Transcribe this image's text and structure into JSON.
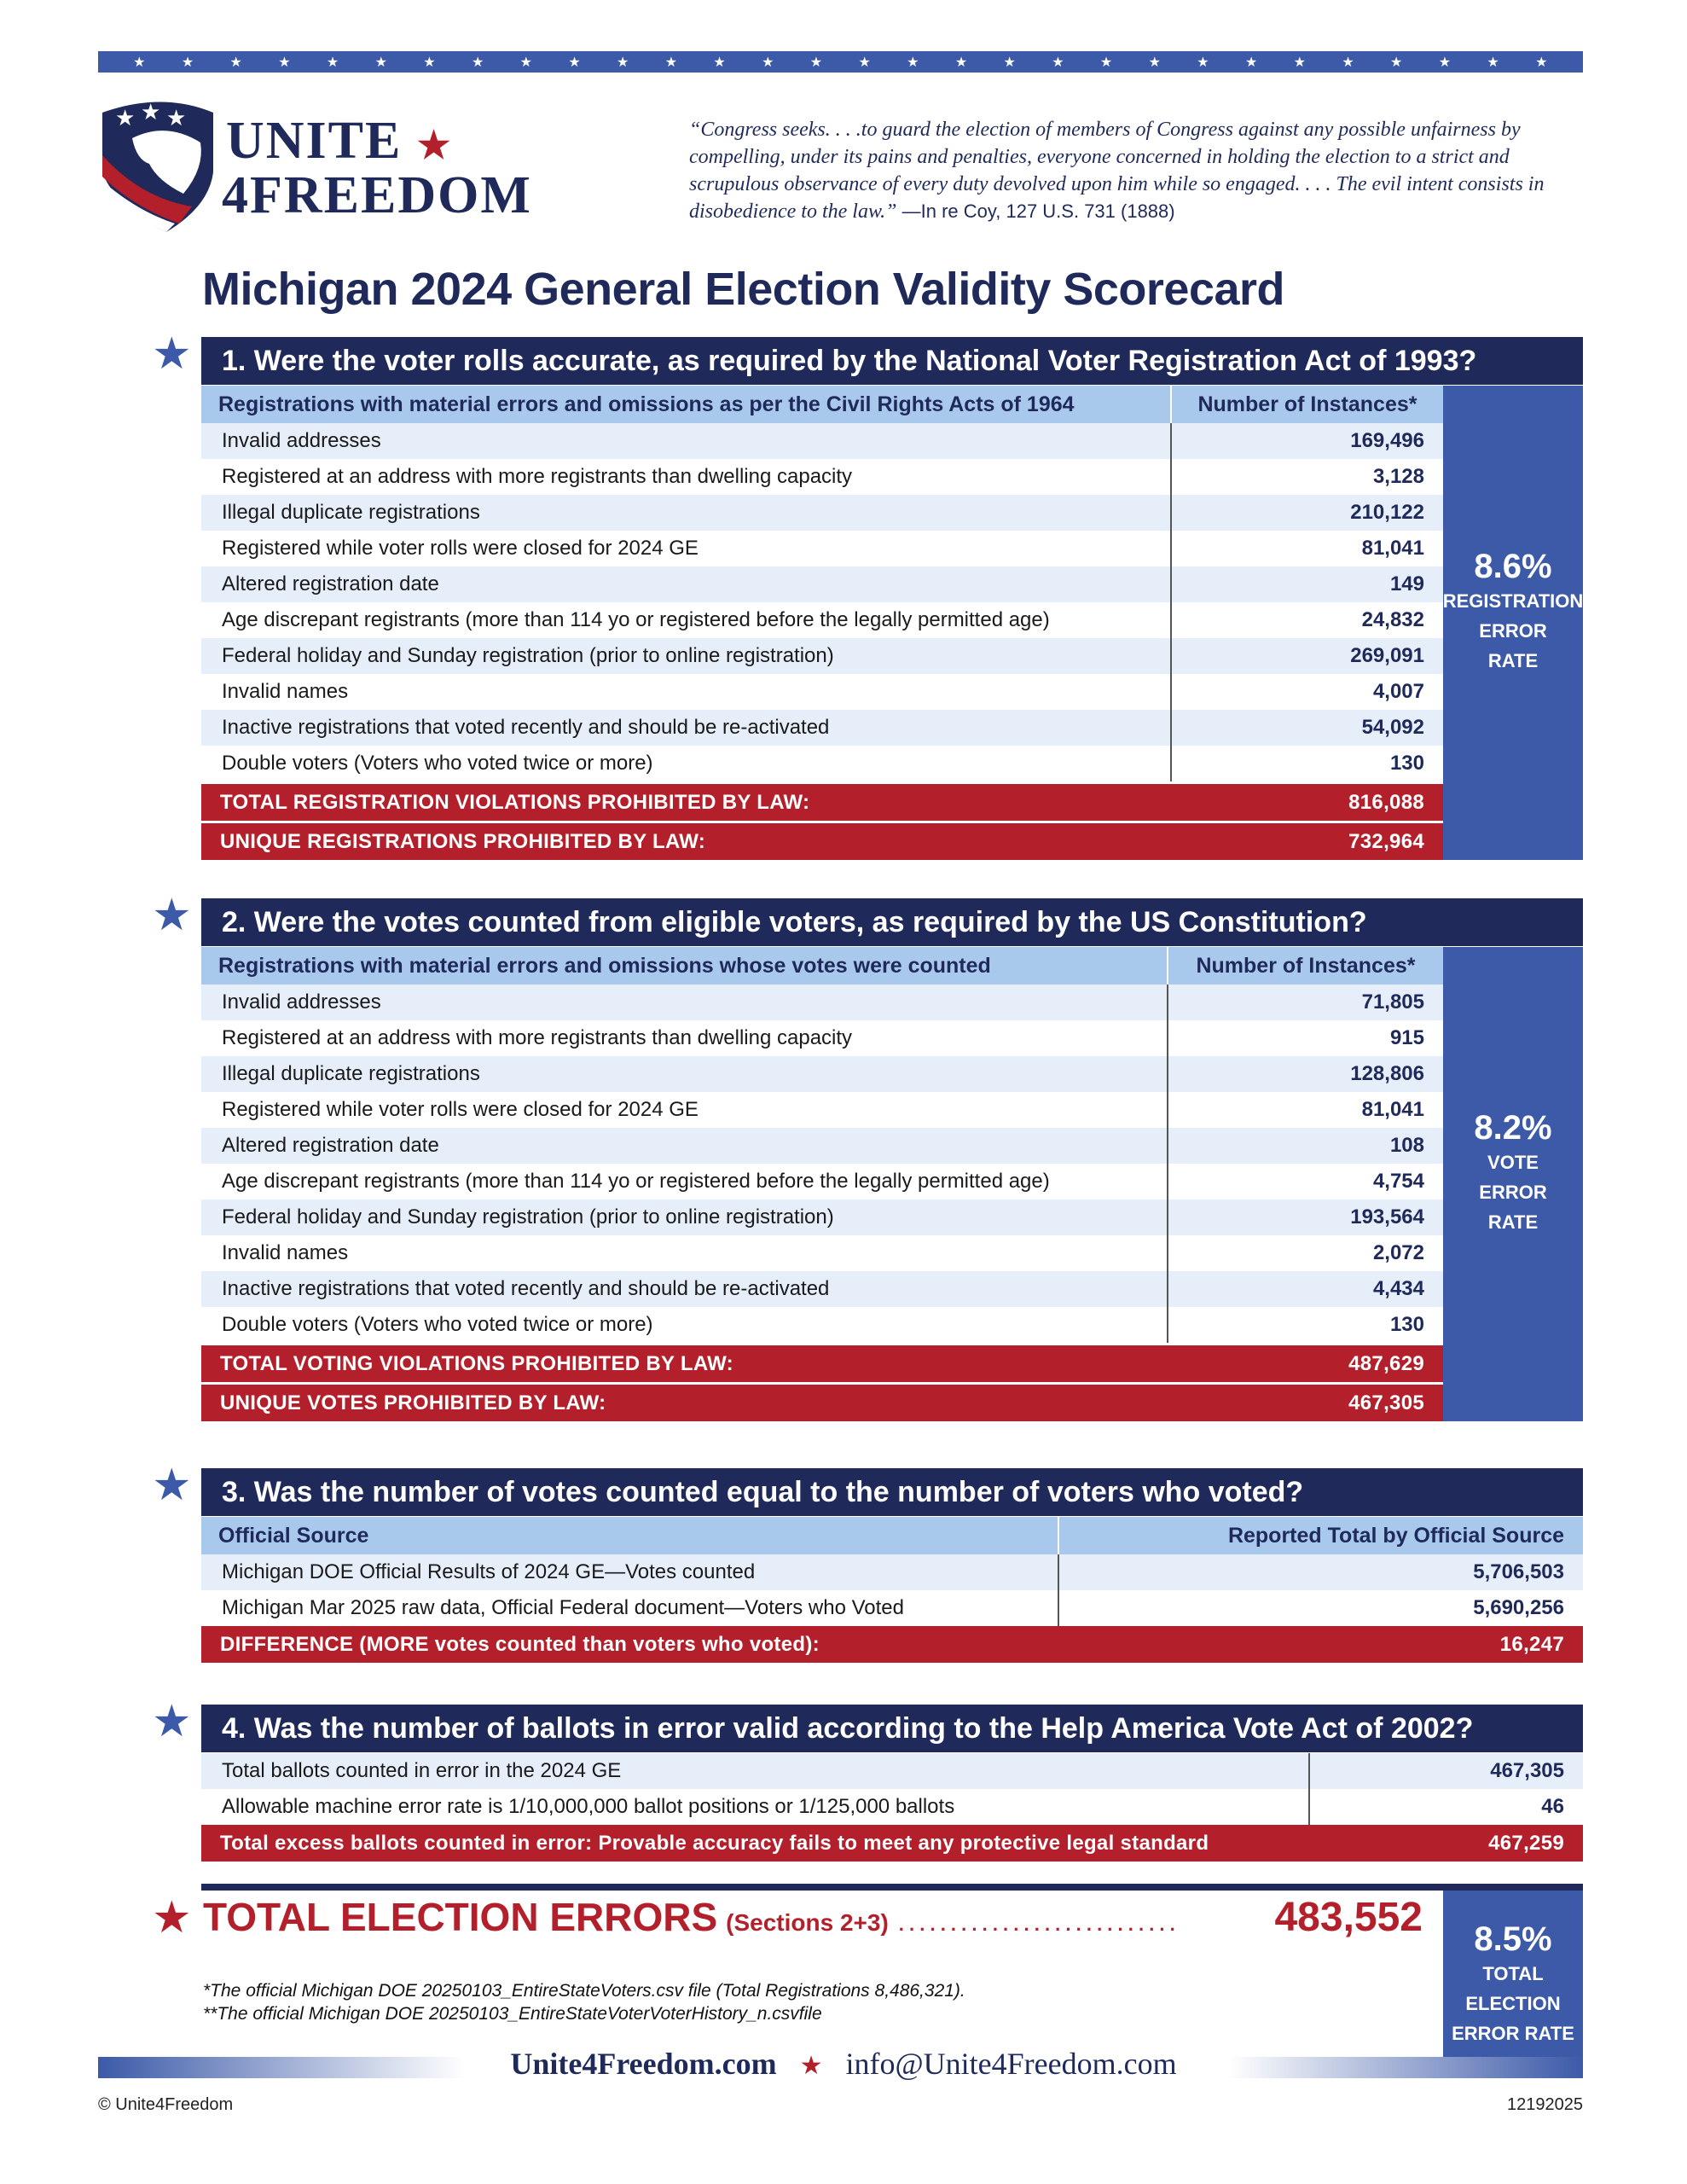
{
  "brand": {
    "line1": "UNITE",
    "line2": "4FREEDOM",
    "star_color": "#b31f2a"
  },
  "quote": {
    "text": "“Congress seeks. . . .to guard the election of members of Congress against any possible unfairness by compelling, under its pains and penalties, everyone concerned in holding the election to a strict and scrupulous observance of every duty devolved upon him while so engaged. . . . The evil intent consists in disobedience to the law.”",
    "cite": " —In re Coy, 127 U.S. 731 (1888)"
  },
  "title": "Michigan 2024 General Election Validity Scorecard",
  "colors": {
    "navy": "#1f2a5a",
    "blue": "#3c5aa8",
    "red": "#b31f2a",
    "lightblue": "#a9c9ec"
  },
  "sections": [
    {
      "heading": "1. Were the voter rolls accurate, as required by the National Voter Registration Act of 1993?",
      "col_label": "Registrations with material errors and omissions as per the Civil Rights Acts of 1964",
      "col_value": "Number of Instances*",
      "rows": [
        [
          "Invalid addresses",
          "169,496"
        ],
        [
          "Registered at an address with more registrants than dwelling capacity",
          "3,128"
        ],
        [
          "Illegal duplicate registrations",
          "210,122"
        ],
        [
          "Registered while voter rolls were closed for 2024 GE",
          "81,041"
        ],
        [
          "Altered registration date",
          "149"
        ],
        [
          "Age discrepant registrants (more than 114 yo or registered before the legally permitted age)",
          "24,832"
        ],
        [
          "Federal holiday and Sunday registration (prior to online registration)",
          "269,091"
        ],
        [
          "Invalid names",
          "4,007"
        ],
        [
          "Inactive registrations that voted recently and should be re-activated",
          "54,092"
        ],
        [
          "Double voters (Voters who voted twice or more)",
          "130"
        ]
      ],
      "totals": [
        [
          "TOTAL REGISTRATION VIOLATIONS PROHIBITED BY LAW:",
          "816,088"
        ],
        [
          "UNIQUE REGISTRATIONS PROHIBITED BY LAW:",
          "732,964"
        ]
      ],
      "rate": "8.6%",
      "rate_caption": [
        "REGISTRATION",
        "ERROR",
        "RATE"
      ]
    },
    {
      "heading": "2. Were the votes counted from eligible voters, as required by the US Constitution?",
      "col_label": "Registrations with material errors and omissions whose votes were counted",
      "col_value": "Number of Instances*",
      "rows": [
        [
          "Invalid addresses",
          "71,805"
        ],
        [
          "Registered at an address with more registrants than dwelling capacity",
          "915"
        ],
        [
          "Illegal duplicate registrations",
          "128,806"
        ],
        [
          "Registered while voter rolls were closed for 2024 GE",
          "81,041"
        ],
        [
          "Altered registration date",
          "108"
        ],
        [
          "Age discrepant registrants (more than 114 yo or registered before the legally permitted age)",
          "4,754"
        ],
        [
          "Federal holiday and Sunday registration (prior to online registration)",
          "193,564"
        ],
        [
          "Invalid names",
          "2,072"
        ],
        [
          "Inactive registrations that voted recently and should be re-activated",
          "4,434"
        ],
        [
          "Double voters (Voters who voted twice or more)",
          "130"
        ]
      ],
      "totals": [
        [
          "TOTAL VOTING VIOLATIONS PROHIBITED BY LAW:",
          "487,629"
        ],
        [
          "UNIQUE VOTES PROHIBITED BY LAW:",
          "467,305"
        ]
      ],
      "rate": "8.2%",
      "rate_caption": [
        "VOTE",
        "ERROR",
        "RATE"
      ]
    },
    {
      "heading": "3. Was the number of votes counted equal to the number of voters who voted?",
      "col_label": "Official Source",
      "col_value": "Reported Total by Official Source",
      "rows": [
        [
          "Michigan DOE Official Results of 2024 GE—Votes counted",
          "5,706,503"
        ],
        [
          "Michigan Mar 2025 raw data, Official Federal document—Voters who Voted",
          "5,690,256"
        ]
      ],
      "totals": [
        [
          "DIFFERENCE (MORE votes counted than voters who voted):",
          "16,247"
        ]
      ]
    },
    {
      "heading": "4. Was the number of ballots in error valid according to the Help America Vote Act of 2002?",
      "rows": [
        [
          "Total ballots counted in error in the 2024 GE",
          "467,305"
        ],
        [
          "Allowable machine error rate is 1/10,000,000 ballot positions or 1/125,000 ballots",
          "46"
        ]
      ],
      "totals": [
        [
          "Total excess ballots counted in error: Provable accuracy fails to meet any protective legal standard",
          "467,259"
        ]
      ]
    }
  ],
  "grand_total": {
    "label": "TOTAL ELECTION ERRORS",
    "sub": "(Sections 2+3)",
    "dots": ". . . . . . . . . . . . . . . . . . . . . . . . . . .",
    "value": "483,552",
    "rate": "8.5%",
    "rate_caption": [
      "TOTAL",
      "ELECTION",
      "ERROR RATE"
    ]
  },
  "footnotes": [
    "*The official Michigan DOE 20250103_EntireStateVoters.csv file (Total Registrations 8,486,321).",
    "**The official Michigan DOE 20250103_EntireStateVoterVoterHistory_n.csvfile"
  ],
  "footer": {
    "website": "Unite4Freedom.com",
    "email": "info@Unite4Freedom.com",
    "copyright": "© Unite4Freedom",
    "code": "12192025"
  }
}
